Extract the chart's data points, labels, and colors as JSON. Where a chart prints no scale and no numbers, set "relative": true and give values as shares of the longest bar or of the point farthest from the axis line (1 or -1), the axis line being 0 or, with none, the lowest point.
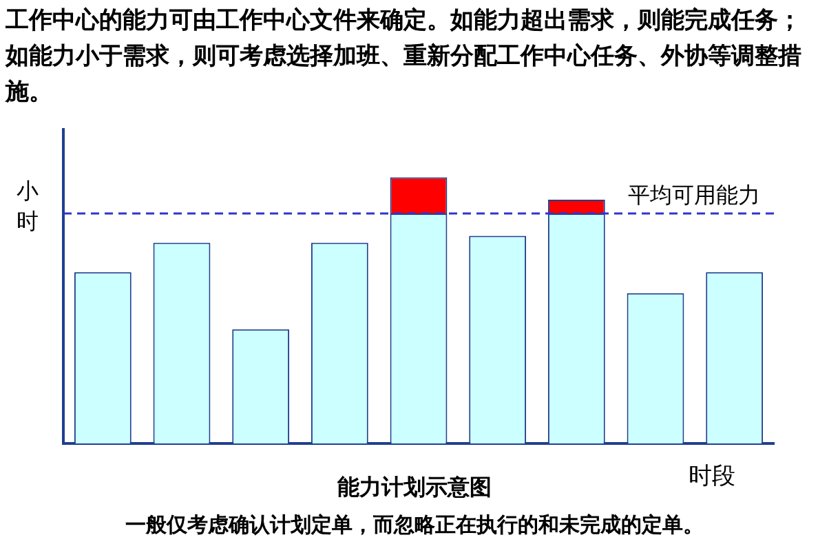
{
  "chart_data": {
    "type": "bar",
    "title": "工作中心的能力可由工作中心文件来确定。如能力超出需求，则能完成任务；如能力小于需求，则可考虑选择加班、重新分配工作中心任务、外协等调整措施。",
    "xlabel": "时段",
    "ylabel": "小时",
    "relative": true,
    "stacked": true,
    "categories": [
      null,
      null,
      null,
      null,
      null,
      null,
      null,
      null,
      null
    ],
    "series": [
      {
        "color": "#ccffff",
        "values": [
          0.644,
          0.754,
          0.429,
          0.754,
          0.864,
          0.78,
          0.864,
          0.565,
          0.644
        ]
      },
      {
        "color": "#ff0000",
        "values": [
          null,
          null,
          null,
          null,
          0.136,
          null,
          0.052,
          null,
          null
        ]
      }
    ],
    "ref_lines": [
      {
        "axis": "y",
        "value": 0.864,
        "label": "平均可用能力",
        "color": "#3333cc",
        "line_style": "dashed"
      }
    ],
    "annotations": [
      "能力计划示意图",
      "一般仅考虑确认计划定单，而忽略正在执行的和未完成的定单。"
    ]
  }
}
